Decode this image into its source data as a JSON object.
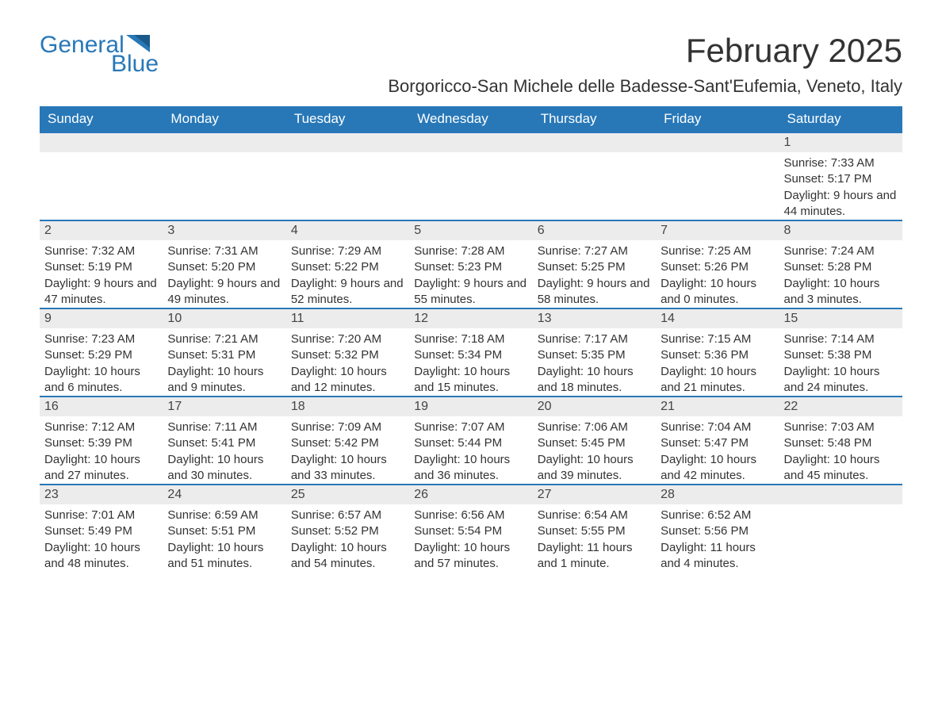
{
  "logo": {
    "text1": "General",
    "text2": "Blue",
    "icon_color": "#2878b8"
  },
  "title": "February 2025",
  "location": "Borgoricco-San Michele delle Badesse-Sant'Eufemia, Veneto, Italy",
  "colors": {
    "header_bg": "#2878b8",
    "header_text": "#ffffff",
    "day_number_bg": "#ececec",
    "row_border": "#2878b8",
    "text": "#333333",
    "background": "#ffffff"
  },
  "typography": {
    "title_fontsize": 42,
    "location_fontsize": 22,
    "header_fontsize": 17,
    "daynum_fontsize": 16,
    "info_fontsize": 15
  },
  "weekdays": [
    "Sunday",
    "Monday",
    "Tuesday",
    "Wednesday",
    "Thursday",
    "Friday",
    "Saturday"
  ],
  "weeks": [
    [
      null,
      null,
      null,
      null,
      null,
      null,
      {
        "day": "1",
        "sunrise": "Sunrise: 7:33 AM",
        "sunset": "Sunset: 5:17 PM",
        "daylight": "Daylight: 9 hours and 44 minutes."
      }
    ],
    [
      {
        "day": "2",
        "sunrise": "Sunrise: 7:32 AM",
        "sunset": "Sunset: 5:19 PM",
        "daylight": "Daylight: 9 hours and 47 minutes."
      },
      {
        "day": "3",
        "sunrise": "Sunrise: 7:31 AM",
        "sunset": "Sunset: 5:20 PM",
        "daylight": "Daylight: 9 hours and 49 minutes."
      },
      {
        "day": "4",
        "sunrise": "Sunrise: 7:29 AM",
        "sunset": "Sunset: 5:22 PM",
        "daylight": "Daylight: 9 hours and 52 minutes."
      },
      {
        "day": "5",
        "sunrise": "Sunrise: 7:28 AM",
        "sunset": "Sunset: 5:23 PM",
        "daylight": "Daylight: 9 hours and 55 minutes."
      },
      {
        "day": "6",
        "sunrise": "Sunrise: 7:27 AM",
        "sunset": "Sunset: 5:25 PM",
        "daylight": "Daylight: 9 hours and 58 minutes."
      },
      {
        "day": "7",
        "sunrise": "Sunrise: 7:25 AM",
        "sunset": "Sunset: 5:26 PM",
        "daylight": "Daylight: 10 hours and 0 minutes."
      },
      {
        "day": "8",
        "sunrise": "Sunrise: 7:24 AM",
        "sunset": "Sunset: 5:28 PM",
        "daylight": "Daylight: 10 hours and 3 minutes."
      }
    ],
    [
      {
        "day": "9",
        "sunrise": "Sunrise: 7:23 AM",
        "sunset": "Sunset: 5:29 PM",
        "daylight": "Daylight: 10 hours and 6 minutes."
      },
      {
        "day": "10",
        "sunrise": "Sunrise: 7:21 AM",
        "sunset": "Sunset: 5:31 PM",
        "daylight": "Daylight: 10 hours and 9 minutes."
      },
      {
        "day": "11",
        "sunrise": "Sunrise: 7:20 AM",
        "sunset": "Sunset: 5:32 PM",
        "daylight": "Daylight: 10 hours and 12 minutes."
      },
      {
        "day": "12",
        "sunrise": "Sunrise: 7:18 AM",
        "sunset": "Sunset: 5:34 PM",
        "daylight": "Daylight: 10 hours and 15 minutes."
      },
      {
        "day": "13",
        "sunrise": "Sunrise: 7:17 AM",
        "sunset": "Sunset: 5:35 PM",
        "daylight": "Daylight: 10 hours and 18 minutes."
      },
      {
        "day": "14",
        "sunrise": "Sunrise: 7:15 AM",
        "sunset": "Sunset: 5:36 PM",
        "daylight": "Daylight: 10 hours and 21 minutes."
      },
      {
        "day": "15",
        "sunrise": "Sunrise: 7:14 AM",
        "sunset": "Sunset: 5:38 PM",
        "daylight": "Daylight: 10 hours and 24 minutes."
      }
    ],
    [
      {
        "day": "16",
        "sunrise": "Sunrise: 7:12 AM",
        "sunset": "Sunset: 5:39 PM",
        "daylight": "Daylight: 10 hours and 27 minutes."
      },
      {
        "day": "17",
        "sunrise": "Sunrise: 7:11 AM",
        "sunset": "Sunset: 5:41 PM",
        "daylight": "Daylight: 10 hours and 30 minutes."
      },
      {
        "day": "18",
        "sunrise": "Sunrise: 7:09 AM",
        "sunset": "Sunset: 5:42 PM",
        "daylight": "Daylight: 10 hours and 33 minutes."
      },
      {
        "day": "19",
        "sunrise": "Sunrise: 7:07 AM",
        "sunset": "Sunset: 5:44 PM",
        "daylight": "Daylight: 10 hours and 36 minutes."
      },
      {
        "day": "20",
        "sunrise": "Sunrise: 7:06 AM",
        "sunset": "Sunset: 5:45 PM",
        "daylight": "Daylight: 10 hours and 39 minutes."
      },
      {
        "day": "21",
        "sunrise": "Sunrise: 7:04 AM",
        "sunset": "Sunset: 5:47 PM",
        "daylight": "Daylight: 10 hours and 42 minutes."
      },
      {
        "day": "22",
        "sunrise": "Sunrise: 7:03 AM",
        "sunset": "Sunset: 5:48 PM",
        "daylight": "Daylight: 10 hours and 45 minutes."
      }
    ],
    [
      {
        "day": "23",
        "sunrise": "Sunrise: 7:01 AM",
        "sunset": "Sunset: 5:49 PM",
        "daylight": "Daylight: 10 hours and 48 minutes."
      },
      {
        "day": "24",
        "sunrise": "Sunrise: 6:59 AM",
        "sunset": "Sunset: 5:51 PM",
        "daylight": "Daylight: 10 hours and 51 minutes."
      },
      {
        "day": "25",
        "sunrise": "Sunrise: 6:57 AM",
        "sunset": "Sunset: 5:52 PM",
        "daylight": "Daylight: 10 hours and 54 minutes."
      },
      {
        "day": "26",
        "sunrise": "Sunrise: 6:56 AM",
        "sunset": "Sunset: 5:54 PM",
        "daylight": "Daylight: 10 hours and 57 minutes."
      },
      {
        "day": "27",
        "sunrise": "Sunrise: 6:54 AM",
        "sunset": "Sunset: 5:55 PM",
        "daylight": "Daylight: 11 hours and 1 minute."
      },
      {
        "day": "28",
        "sunrise": "Sunrise: 6:52 AM",
        "sunset": "Sunset: 5:56 PM",
        "daylight": "Daylight: 11 hours and 4 minutes."
      },
      null
    ]
  ]
}
